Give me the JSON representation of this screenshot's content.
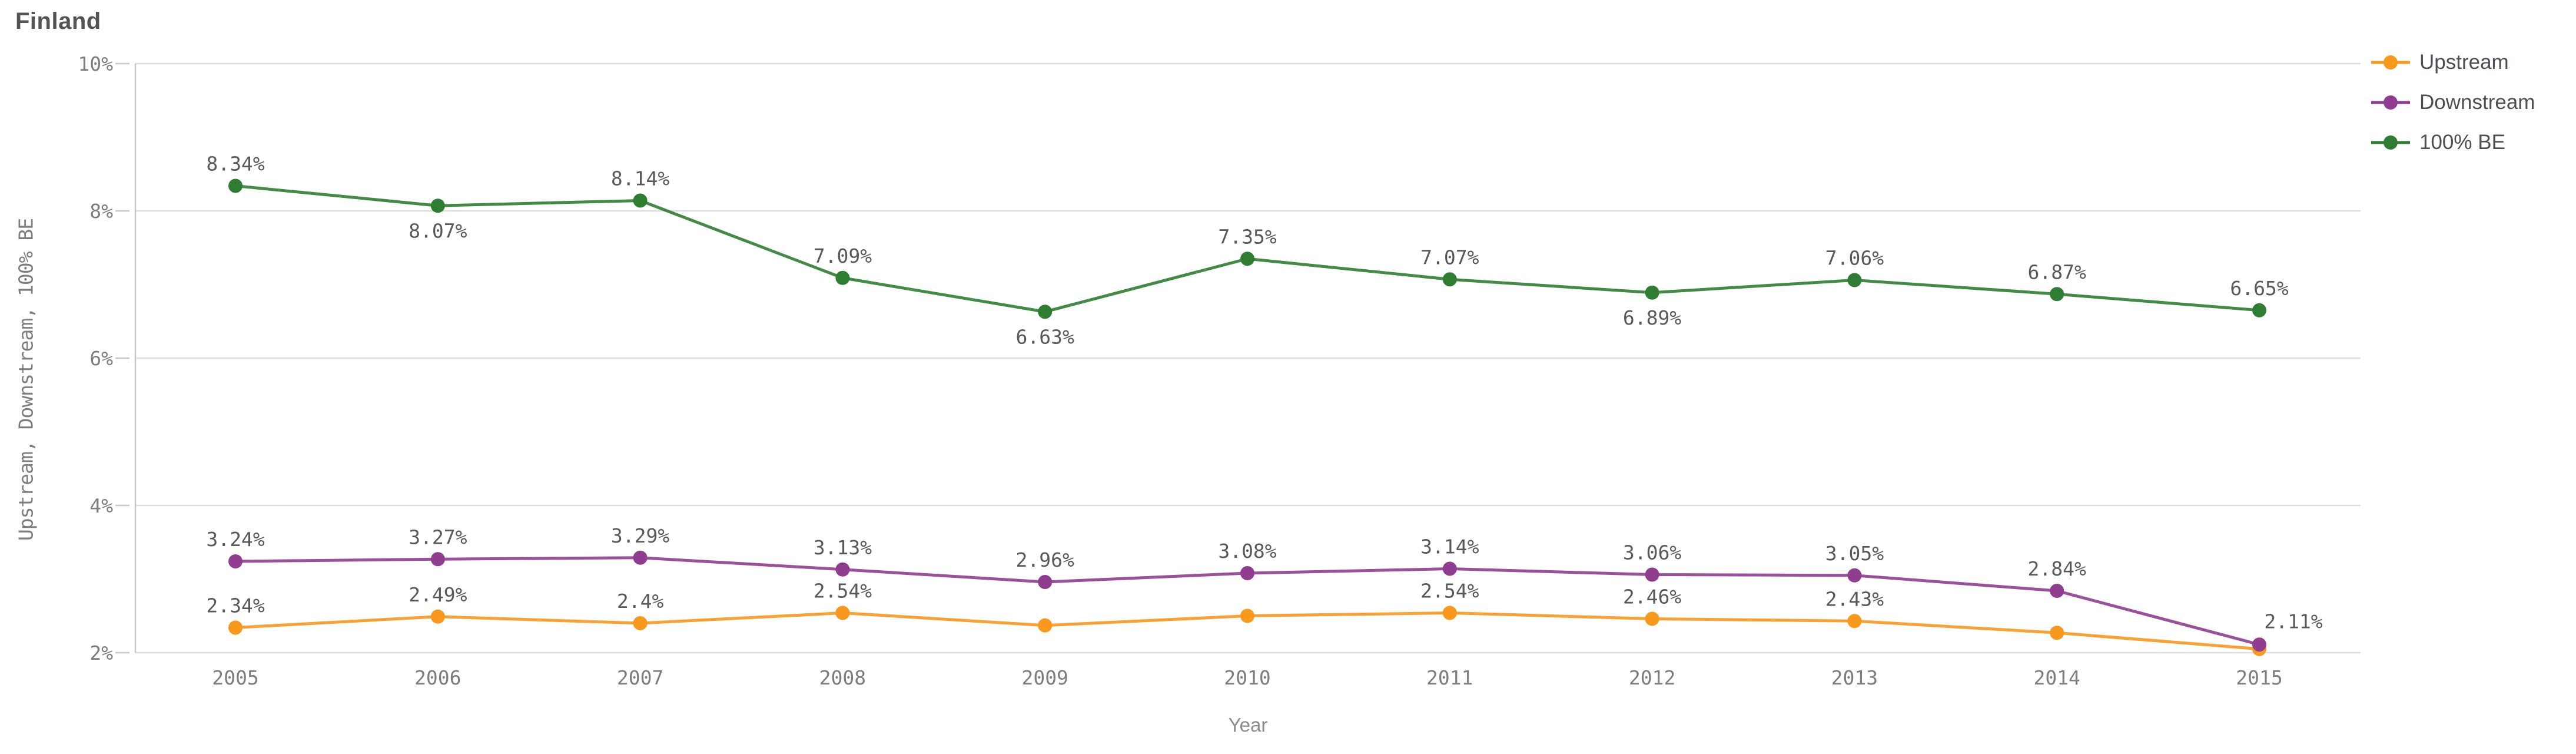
{
  "title": "Finland",
  "axes": {
    "y_title": "Upstream, Downstream, 100% BE",
    "x_title": "Year",
    "y_tick_labels": [
      "10%",
      "8%",
      "6%",
      "4%",
      "2%"
    ],
    "y_tick_values": [
      10,
      8,
      6,
      4,
      2
    ]
  },
  "legend": {
    "position": "top-right",
    "items": [
      {
        "label": "Upstream",
        "color": "#F8981D"
      },
      {
        "label": "Downstream",
        "color": "#8F3D8F"
      },
      {
        "label": "100% BE",
        "color": "#2E7D32"
      }
    ]
  },
  "colors": {
    "upstream": "#F8981D",
    "downstream": "#8F3D8F",
    "be100": "#2E7D32",
    "gridline": "#DCDCDC",
    "axis_line": "#C9C9C9",
    "tick_text": "#7d7d7d",
    "data_label_text": "#595959",
    "title_text": "#545454"
  },
  "chart_data": {
    "type": "line",
    "title": "Finland",
    "xlabel": "Year",
    "ylabel": "Upstream, Downstream, 100% BE",
    "x": [
      2005,
      2006,
      2007,
      2008,
      2009,
      2010,
      2011,
      2012,
      2013,
      2014,
      2015
    ],
    "ylim": [
      2,
      10
    ],
    "y_tick_step": 2,
    "y_tick_format": "percent",
    "grid": true,
    "legend_position": "top-right",
    "series": [
      {
        "name": "Upstream",
        "color": "#F8981D",
        "values": [
          2.34,
          2.49,
          2.4,
          2.54,
          2.37,
          2.5,
          2.54,
          2.46,
          2.43,
          2.27,
          2.05
        ],
        "data_labels": [
          "2.34%",
          "2.49%",
          "2.4%",
          "2.54%",
          null,
          null,
          "2.54%",
          "2.46%",
          "2.43%",
          null,
          null
        ],
        "label_side": [
          "above",
          "above",
          "above",
          "above",
          null,
          null,
          "above",
          "above",
          "above",
          null,
          null
        ]
      },
      {
        "name": "Downstream",
        "color": "#8F3D8F",
        "values": [
          3.24,
          3.27,
          3.29,
          3.13,
          2.96,
          3.08,
          3.14,
          3.06,
          3.05,
          2.84,
          2.11
        ],
        "data_labels": [
          "3.24%",
          "3.27%",
          "3.29%",
          "3.13%",
          "2.96%",
          "3.08%",
          "3.14%",
          "3.06%",
          "3.05%",
          "2.84%",
          "2.11%"
        ],
        "label_side": [
          "above",
          "above",
          "above",
          "above",
          "above",
          "above",
          "above",
          "above",
          "above",
          "above",
          "above-right"
        ]
      },
      {
        "name": "100% BE",
        "color": "#2E7D32",
        "values": [
          8.34,
          8.07,
          8.14,
          7.09,
          6.63,
          7.35,
          7.07,
          6.89,
          7.06,
          6.87,
          6.65
        ],
        "data_labels": [
          "8.34%",
          "8.07%",
          "8.14%",
          "7.09%",
          "6.63%",
          "7.35%",
          "7.07%",
          "6.89%",
          "7.06%",
          "6.87%",
          "6.65%"
        ],
        "label_side": [
          "above",
          "below",
          "above",
          "above",
          "below",
          "above",
          "above",
          "below",
          "above",
          "above",
          "above"
        ]
      }
    ]
  }
}
